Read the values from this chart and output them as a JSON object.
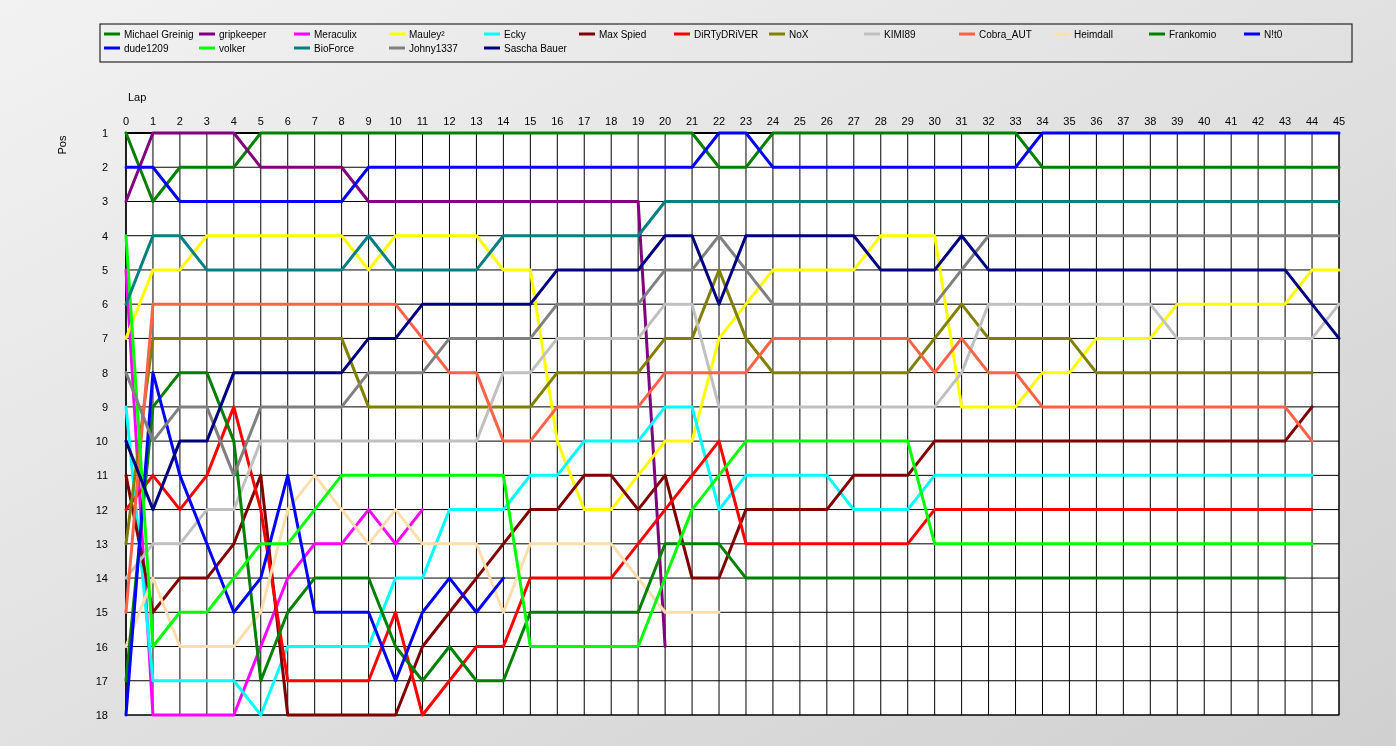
{
  "chart_data": {
    "type": "line",
    "xlabel": "Lap",
    "ylabel": "Pos",
    "x": [
      0,
      1,
      2,
      3,
      4,
      5,
      6,
      7,
      8,
      9,
      10,
      11,
      12,
      13,
      14,
      15,
      16,
      17,
      18,
      19,
      20,
      21,
      22,
      23,
      24,
      25,
      26,
      27,
      28,
      29,
      30,
      31,
      32,
      33,
      34,
      35,
      36,
      37,
      38,
      39,
      40,
      41,
      42,
      43,
      44,
      45
    ],
    "xlim": [
      0,
      45
    ],
    "xticks": [
      0,
      1,
      2,
      3,
      4,
      5,
      6,
      7,
      8,
      9,
      10,
      11,
      12,
      13,
      14,
      15,
      16,
      17,
      18,
      19,
      20,
      21,
      22,
      23,
      24,
      25,
      26,
      27,
      28,
      29,
      30,
      31,
      32,
      33,
      34,
      35,
      36,
      37,
      38,
      39,
      40,
      41,
      42,
      43,
      44,
      45
    ],
    "ylim": [
      18,
      1
    ],
    "yticks": [
      1,
      2,
      3,
      4,
      5,
      6,
      7,
      8,
      9,
      10,
      11,
      12,
      13,
      14,
      15,
      16,
      17,
      18
    ],
    "grid": true,
    "legend": "top",
    "series": [
      {
        "name": "Michael Greinig",
        "color": "#008000",
        "values": [
          1,
          3,
          2,
          2,
          2,
          1,
          1,
          1,
          1,
          1,
          1,
          1,
          1,
          1,
          1,
          1,
          1,
          1,
          1,
          1,
          1,
          1,
          2,
          2,
          1,
          1,
          1,
          1,
          1,
          1,
          1,
          1,
          1,
          1,
          2,
          2,
          2,
          2,
          2,
          2,
          2,
          2,
          2,
          2,
          2,
          2
        ]
      },
      {
        "name": "gripkeeper",
        "color": "#800080",
        "values": [
          3,
          1,
          1,
          1,
          1,
          2,
          2,
          2,
          2,
          3,
          3,
          3,
          3,
          3,
          3,
          3,
          3,
          3,
          3,
          3,
          16,
          null,
          null,
          null,
          null,
          null,
          null,
          null,
          null,
          null,
          null,
          null,
          null,
          null,
          null,
          null,
          null,
          null,
          null,
          null,
          null,
          null,
          null,
          null,
          null,
          null
        ]
      },
      {
        "name": "Meraculix",
        "color": "#ff00ff",
        "values": [
          5,
          18,
          18,
          18,
          18,
          16,
          14,
          13,
          13,
          12,
          13,
          12,
          null,
          null,
          null,
          null,
          null,
          null,
          null,
          null,
          null,
          null,
          null,
          null,
          null,
          null,
          null,
          null,
          null,
          null,
          null,
          null,
          null,
          null,
          null,
          null,
          null,
          null,
          null,
          null,
          null,
          null,
          null,
          null,
          null,
          null
        ]
      },
      {
        "name": "Mauley²",
        "color": "#ffff00",
        "values": [
          7,
          5,
          5,
          4,
          4,
          4,
          4,
          4,
          4,
          5,
          4,
          4,
          4,
          4,
          5,
          5,
          10,
          12,
          12,
          11,
          10,
          10,
          7,
          6,
          5,
          5,
          5,
          5,
          4,
          4,
          4,
          9,
          9,
          9,
          8,
          8,
          7,
          7,
          7,
          6,
          6,
          6,
          6,
          6,
          5,
          5
        ]
      },
      {
        "name": "Ecky",
        "color": "#00ffff",
        "values": [
          9,
          17,
          17,
          17,
          17,
          18,
          16,
          16,
          16,
          16,
          14,
          14,
          12,
          12,
          12,
          11,
          11,
          10,
          10,
          10,
          9,
          9,
          12,
          11,
          11,
          11,
          11,
          12,
          12,
          12,
          11,
          11,
          11,
          11,
          11,
          11,
          11,
          11,
          11,
          11,
          11,
          11,
          11,
          11,
          11,
          null
        ]
      },
      {
        "name": "Max Spied",
        "color": "#800000",
        "values": [
          11,
          15,
          14,
          14,
          13,
          11,
          18,
          18,
          18,
          18,
          18,
          16,
          15,
          14,
          13,
          12,
          12,
          11,
          11,
          12,
          11,
          14,
          14,
          12,
          12,
          12,
          12,
          11,
          11,
          11,
          10,
          10,
          10,
          10,
          10,
          10,
          10,
          10,
          10,
          10,
          10,
          10,
          10,
          10,
          9,
          null
        ]
      },
      {
        "name": "DiRTyDRiVER",
        "color": "#ff0000",
        "values": [
          12,
          11,
          12,
          11,
          9,
          12,
          17,
          17,
          17,
          17,
          15,
          18,
          17,
          16,
          16,
          14,
          14,
          14,
          14,
          13,
          12,
          11,
          10,
          13,
          13,
          13,
          13,
          13,
          13,
          13,
          12,
          12,
          12,
          12,
          12,
          12,
          12,
          12,
          12,
          12,
          12,
          12,
          12,
          12,
          12,
          null
        ]
      },
      {
        "name": "NoX",
        "color": "#808000",
        "values": [
          13,
          7,
          7,
          7,
          7,
          7,
          7,
          7,
          7,
          9,
          9,
          9,
          9,
          9,
          9,
          9,
          8,
          8,
          8,
          8,
          7,
          7,
          5,
          7,
          8,
          8,
          8,
          8,
          8,
          8,
          7,
          6,
          7,
          7,
          7,
          7,
          8,
          8,
          8,
          8,
          8,
          8,
          8,
          8,
          8,
          null
        ]
      },
      {
        "name": "KIMI89",
        "color": "#c0c0c0",
        "values": [
          14,
          13,
          13,
          12,
          12,
          10,
          10,
          10,
          10,
          10,
          10,
          10,
          10,
          10,
          8,
          8,
          7,
          7,
          7,
          7,
          6,
          6,
          9,
          9,
          9,
          9,
          9,
          9,
          9,
          9,
          9,
          8,
          6,
          6,
          6,
          6,
          6,
          6,
          6,
          7,
          7,
          7,
          7,
          7,
          7,
          6
        ]
      },
      {
        "name": "Cobra_AUT",
        "color": "#ff6347",
        "values": [
          15,
          6,
          6,
          6,
          6,
          6,
          6,
          6,
          6,
          6,
          6,
          7,
          8,
          8,
          10,
          10,
          9,
          9,
          9,
          9,
          8,
          8,
          8,
          8,
          7,
          7,
          7,
          7,
          7,
          7,
          8,
          7,
          8,
          8,
          9,
          9,
          9,
          9,
          9,
          9,
          9,
          9,
          9,
          9,
          10,
          null
        ]
      },
      {
        "name": "Heimdall",
        "color": "#ffdead",
        "values": [
          16,
          14,
          16,
          16,
          16,
          15,
          12,
          11,
          12,
          13,
          12,
          13,
          13,
          13,
          15,
          13,
          13,
          13,
          13,
          14,
          15,
          15,
          15,
          null,
          null,
          null,
          null,
          null,
          null,
          null,
          null,
          null,
          null,
          null,
          null,
          null,
          null,
          null,
          null,
          null,
          null,
          null,
          null,
          null,
          null,
          null
        ]
      },
      {
        "name": "Frankomio",
        "color": "#008000",
        "values": [
          17,
          9,
          8,
          8,
          10,
          17,
          15,
          14,
          14,
          14,
          16,
          17,
          16,
          17,
          17,
          15,
          15,
          15,
          15,
          15,
          13,
          13,
          13,
          14,
          14,
          14,
          14,
          14,
          14,
          14,
          14,
          14,
          14,
          14,
          14,
          14,
          14,
          14,
          14,
          14,
          14,
          14,
          14,
          14,
          null,
          null
        ]
      },
      {
        "name": "N!t0",
        "color": "#0000ff",
        "values": [
          2,
          2,
          3,
          3,
          3,
          3,
          3,
          3,
          3,
          2,
          2,
          2,
          2,
          2,
          2,
          2,
          2,
          2,
          2,
          2,
          2,
          2,
          1,
          1,
          2,
          2,
          2,
          2,
          2,
          2,
          2,
          2,
          2,
          2,
          1,
          1,
          1,
          1,
          1,
          1,
          1,
          1,
          1,
          1,
          1,
          1
        ]
      },
      {
        "name": "dude1209",
        "color": "#0000ff",
        "values": [
          18,
          8,
          11,
          13,
          15,
          14,
          11,
          15,
          15,
          15,
          17,
          15,
          14,
          15,
          14,
          null,
          null,
          null,
          null,
          null,
          null,
          null,
          null,
          null,
          null,
          null,
          null,
          null,
          null,
          null,
          null,
          null,
          null,
          null,
          null,
          null,
          null,
          null,
          null,
          null,
          null,
          null,
          null,
          null,
          null,
          null
        ]
      },
      {
        "name": "volker",
        "color": "#00ff00",
        "values": [
          4,
          16,
          15,
          15,
          14,
          13,
          13,
          12,
          11,
          11,
          11,
          11,
          11,
          11,
          11,
          16,
          16,
          16,
          16,
          16,
          14,
          12,
          11,
          10,
          10,
          10,
          10,
          10,
          10,
          10,
          13,
          13,
          13,
          13,
          13,
          13,
          13,
          13,
          13,
          13,
          13,
          13,
          13,
          13,
          13,
          null
        ]
      },
      {
        "name": "BioForce",
        "color": "#008080",
        "values": [
          6,
          4,
          4,
          5,
          5,
          5,
          5,
          5,
          5,
          4,
          5,
          5,
          5,
          5,
          4,
          4,
          4,
          4,
          4,
          4,
          3,
          3,
          3,
          3,
          3,
          3,
          3,
          3,
          3,
          3,
          3,
          3,
          3,
          3,
          3,
          3,
          3,
          3,
          3,
          3,
          3,
          3,
          3,
          3,
          3,
          3
        ]
      },
      {
        "name": "Johny1337",
        "color": "#808080",
        "values": [
          8,
          10,
          9,
          9,
          11,
          9,
          9,
          9,
          9,
          8,
          8,
          8,
          7,
          7,
          7,
          7,
          6,
          6,
          6,
          6,
          5,
          5,
          4,
          5,
          6,
          6,
          6,
          6,
          6,
          6,
          6,
          5,
          4,
          4,
          4,
          4,
          4,
          4,
          4,
          4,
          4,
          4,
          4,
          4,
          4,
          4
        ]
      },
      {
        "name": "Sascha Bauer",
        "color": "#000080",
        "values": [
          10,
          12,
          10,
          10,
          8,
          8,
          8,
          8,
          8,
          7,
          7,
          6,
          6,
          6,
          6,
          6,
          5,
          5,
          5,
          5,
          4,
          4,
          6,
          4,
          4,
          4,
          4,
          4,
          5,
          5,
          5,
          4,
          5,
          5,
          5,
          5,
          5,
          5,
          5,
          5,
          5,
          5,
          5,
          5,
          6,
          7
        ]
      }
    ]
  }
}
